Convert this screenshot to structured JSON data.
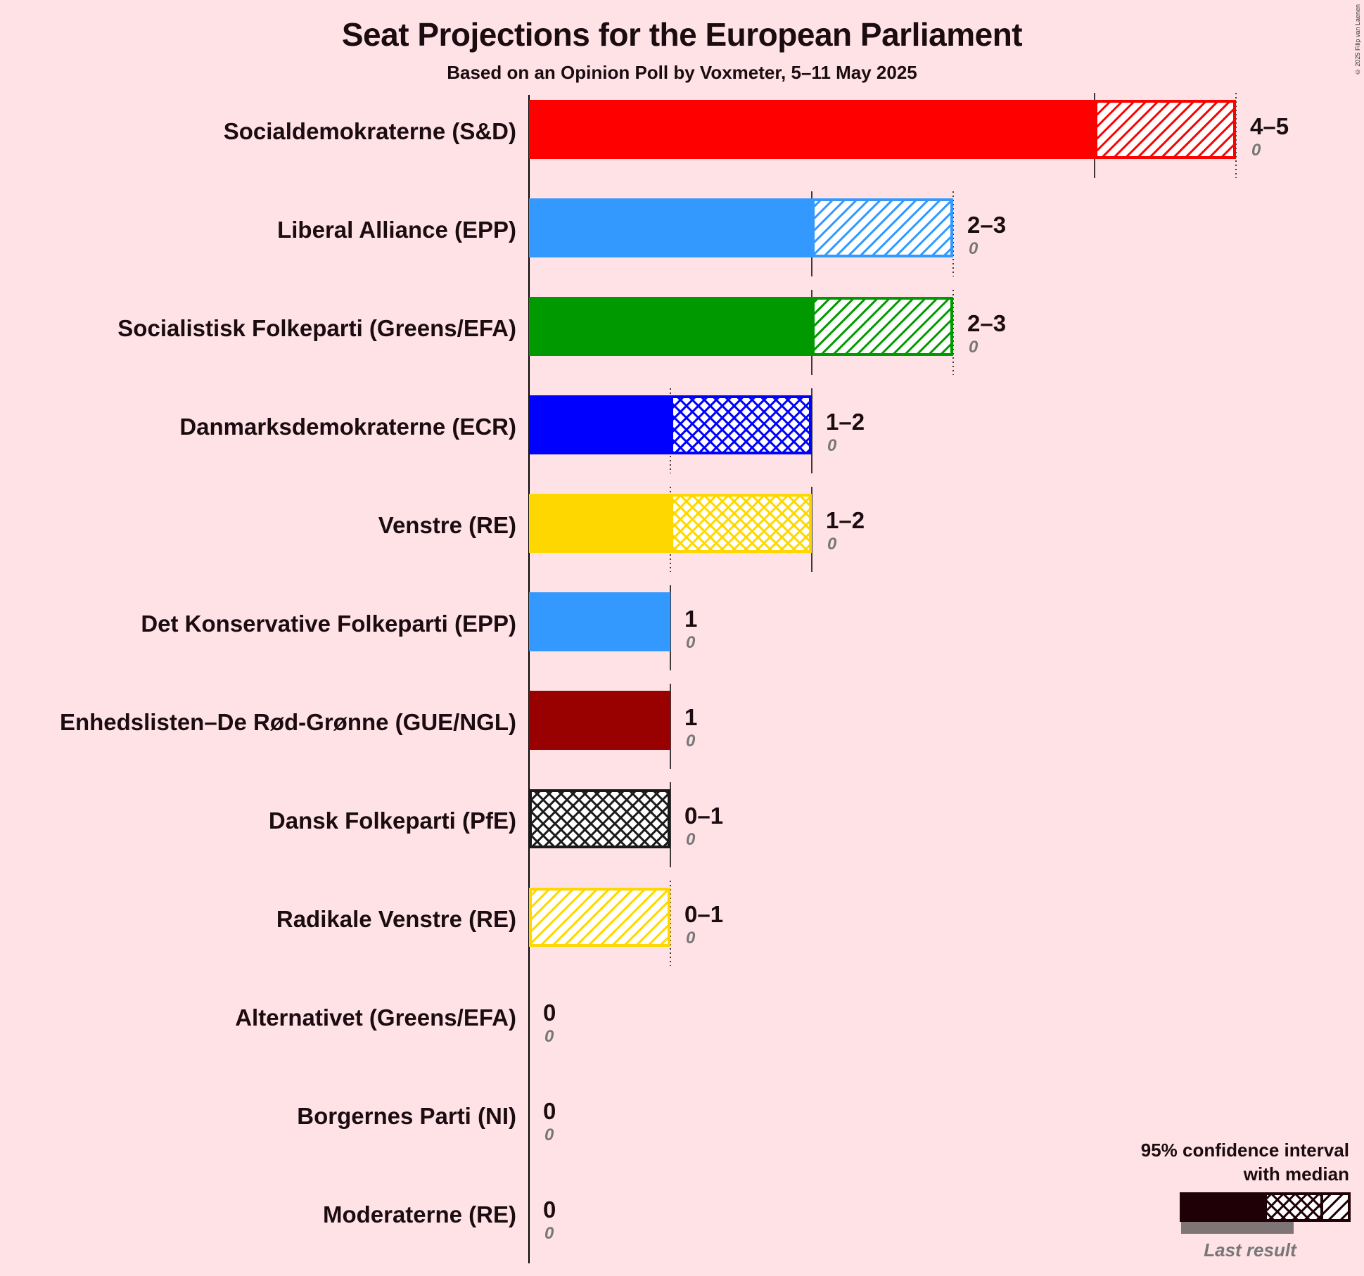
{
  "title": "Seat Projections for the European Parliament",
  "subtitle": "Based on an Opinion Poll by Voxmeter, 5–11 May 2025",
  "copyright": "© 2025 Filip van Laenen",
  "legend": {
    "title_line1": "95% confidence interval",
    "title_line2": "with median",
    "last_result_label": "Last result"
  },
  "chart_data": {
    "type": "bar",
    "orientation": "horizontal",
    "xlim": [
      0,
      5
    ],
    "grid": true,
    "legend_position": "bottom-right",
    "parties": [
      {
        "name": "Socialdemokraterne (S&D)",
        "low": 4,
        "median": 4,
        "high": 5,
        "range_label": "4–5",
        "last_result": "0",
        "color": "#FF0000",
        "hatch": "diagonal"
      },
      {
        "name": "Liberal Alliance (EPP)",
        "low": 2,
        "median": 2,
        "high": 3,
        "range_label": "2–3",
        "last_result": "0",
        "color": "#3399FF",
        "hatch": "diagonal"
      },
      {
        "name": "Socialistisk Folkeparti (Greens/EFA)",
        "low": 2,
        "median": 2,
        "high": 3,
        "range_label": "2–3",
        "last_result": "0",
        "color": "#009900",
        "hatch": "diagonal"
      },
      {
        "name": "Danmarksdemokraterne (ECR)",
        "low": 1,
        "median": 2,
        "high": 2,
        "range_label": "1–2",
        "last_result": "0",
        "color": "#0000FF",
        "hatch": "cross"
      },
      {
        "name": "Venstre (RE)",
        "low": 1,
        "median": 2,
        "high": 2,
        "range_label": "1–2",
        "last_result": "0",
        "color": "#FFD700",
        "hatch": "cross"
      },
      {
        "name": "Det Konservative Folkeparti (EPP)",
        "low": 1,
        "median": 1,
        "high": 1,
        "range_label": "1",
        "last_result": "0",
        "color": "#3399FF",
        "hatch": "none"
      },
      {
        "name": "Enhedslisten–De Rød-Grønne (GUE/NGL)",
        "low": 1,
        "median": 1,
        "high": 1,
        "range_label": "1",
        "last_result": "0",
        "color": "#990000",
        "hatch": "none"
      },
      {
        "name": "Dansk Folkeparti (PfE)",
        "low": 0,
        "median": 1,
        "high": 1,
        "range_label": "0–1",
        "last_result": "0",
        "color": "#1a1a1a",
        "hatch": "cross"
      },
      {
        "name": "Radikale Venstre (RE)",
        "low": 0,
        "median": 0,
        "high": 1,
        "range_label": "0–1",
        "last_result": "0",
        "color": "#FFD700",
        "hatch": "diagonal"
      },
      {
        "name": "Alternativet (Greens/EFA)",
        "low": 0,
        "median": 0,
        "high": 0,
        "range_label": "0",
        "last_result": "0",
        "color": "#009900",
        "hatch": "none"
      },
      {
        "name": "Borgernes Parti (NI)",
        "low": 0,
        "median": 0,
        "high": 0,
        "range_label": "0",
        "last_result": "0",
        "color": "#777777",
        "hatch": "none"
      },
      {
        "name": "Moderaterne (RE)",
        "low": 0,
        "median": 0,
        "high": 0,
        "range_label": "0",
        "last_result": "0",
        "color": "#AA00AA",
        "hatch": "none"
      }
    ]
  }
}
